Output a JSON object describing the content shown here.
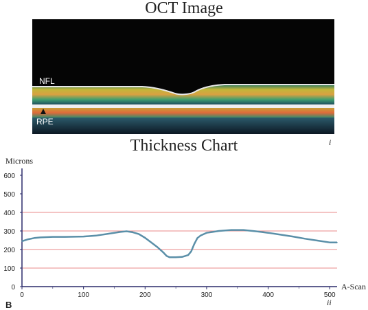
{
  "figure": {
    "oct_title": "OCT Image",
    "nfl_label": "NFL",
    "rpe_label": "RPE",
    "oct_panel_label": "i",
    "chart_title": "Thickness Chart",
    "chart_panel_label": "ii",
    "figure_label": "B"
  },
  "chart_data": {
    "type": "line",
    "title": "Thickness Chart",
    "xlabel": "A-Scan",
    "ylabel": "Microns",
    "xlim": [
      0,
      512
    ],
    "ylim": [
      0,
      600
    ],
    "x_ticks": [
      0,
      100,
      200,
      300,
      400,
      500
    ],
    "y_ticks": [
      0,
      100,
      200,
      300,
      400,
      500,
      600
    ],
    "gridlines_y": [
      100,
      200,
      300,
      400
    ],
    "grid_color": "#e06060",
    "line_color": "#5a8fa8",
    "axis_color": "#2a2a6a",
    "series": [
      {
        "x": [
          0,
          10,
          20,
          30,
          50,
          70,
          100,
          120,
          140,
          160,
          170,
          180,
          190,
          200,
          210,
          220,
          230,
          235,
          240,
          250,
          260,
          270,
          275,
          280,
          285,
          290,
          300,
          310,
          320,
          340,
          360,
          380,
          400,
          420,
          440,
          460,
          480,
          500,
          512
        ],
        "y": [
          245,
          255,
          262,
          265,
          268,
          268,
          270,
          275,
          285,
          295,
          298,
          293,
          283,
          263,
          238,
          213,
          183,
          165,
          158,
          158,
          160,
          170,
          190,
          230,
          262,
          275,
          290,
          295,
          300,
          305,
          305,
          298,
          290,
          280,
          270,
          258,
          248,
          238,
          238
        ]
      }
    ]
  }
}
